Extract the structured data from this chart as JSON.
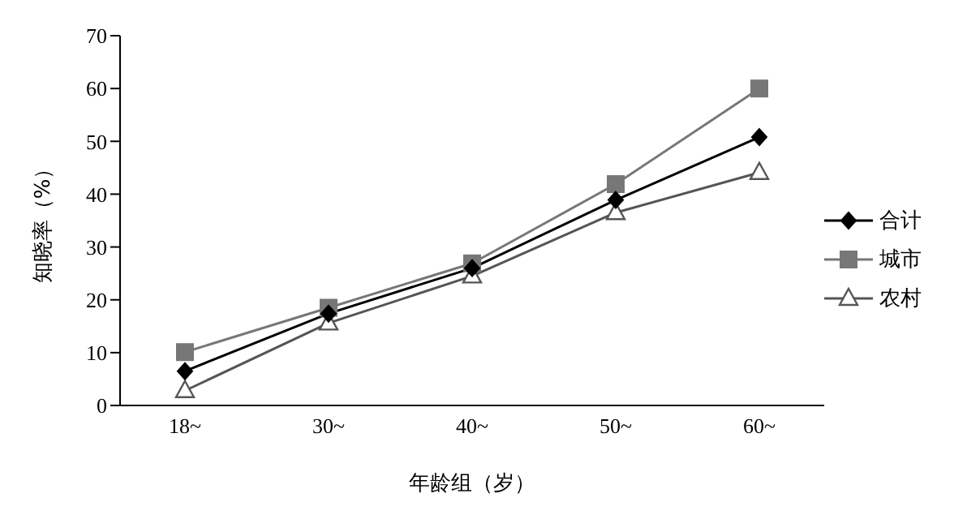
{
  "chart_data": {
    "type": "line",
    "xlabel": "年龄组（岁）",
    "ylabel": "知晓率（%）",
    "categories": [
      "18~",
      "30~",
      "40~",
      "50~",
      "60~"
    ],
    "ylim": [
      0,
      70
    ],
    "yticks": [
      0,
      10,
      20,
      30,
      40,
      50,
      60,
      70
    ],
    "grid": false,
    "legend": "right",
    "series": [
      {
        "name": "合计",
        "color": "#000000",
        "marker": "diamond",
        "values": [
          6.5,
          17.4,
          26,
          38.9,
          50.8
        ]
      },
      {
        "name": "城市",
        "color": "#777777",
        "marker": "square",
        "values": [
          10.1,
          18.5,
          26.9,
          41.9,
          60
        ]
      },
      {
        "name": "农村",
        "color": "#555555",
        "marker": "triangle",
        "values": [
          2.8,
          15.6,
          24.5,
          36.5,
          44.1
        ]
      }
    ]
  }
}
